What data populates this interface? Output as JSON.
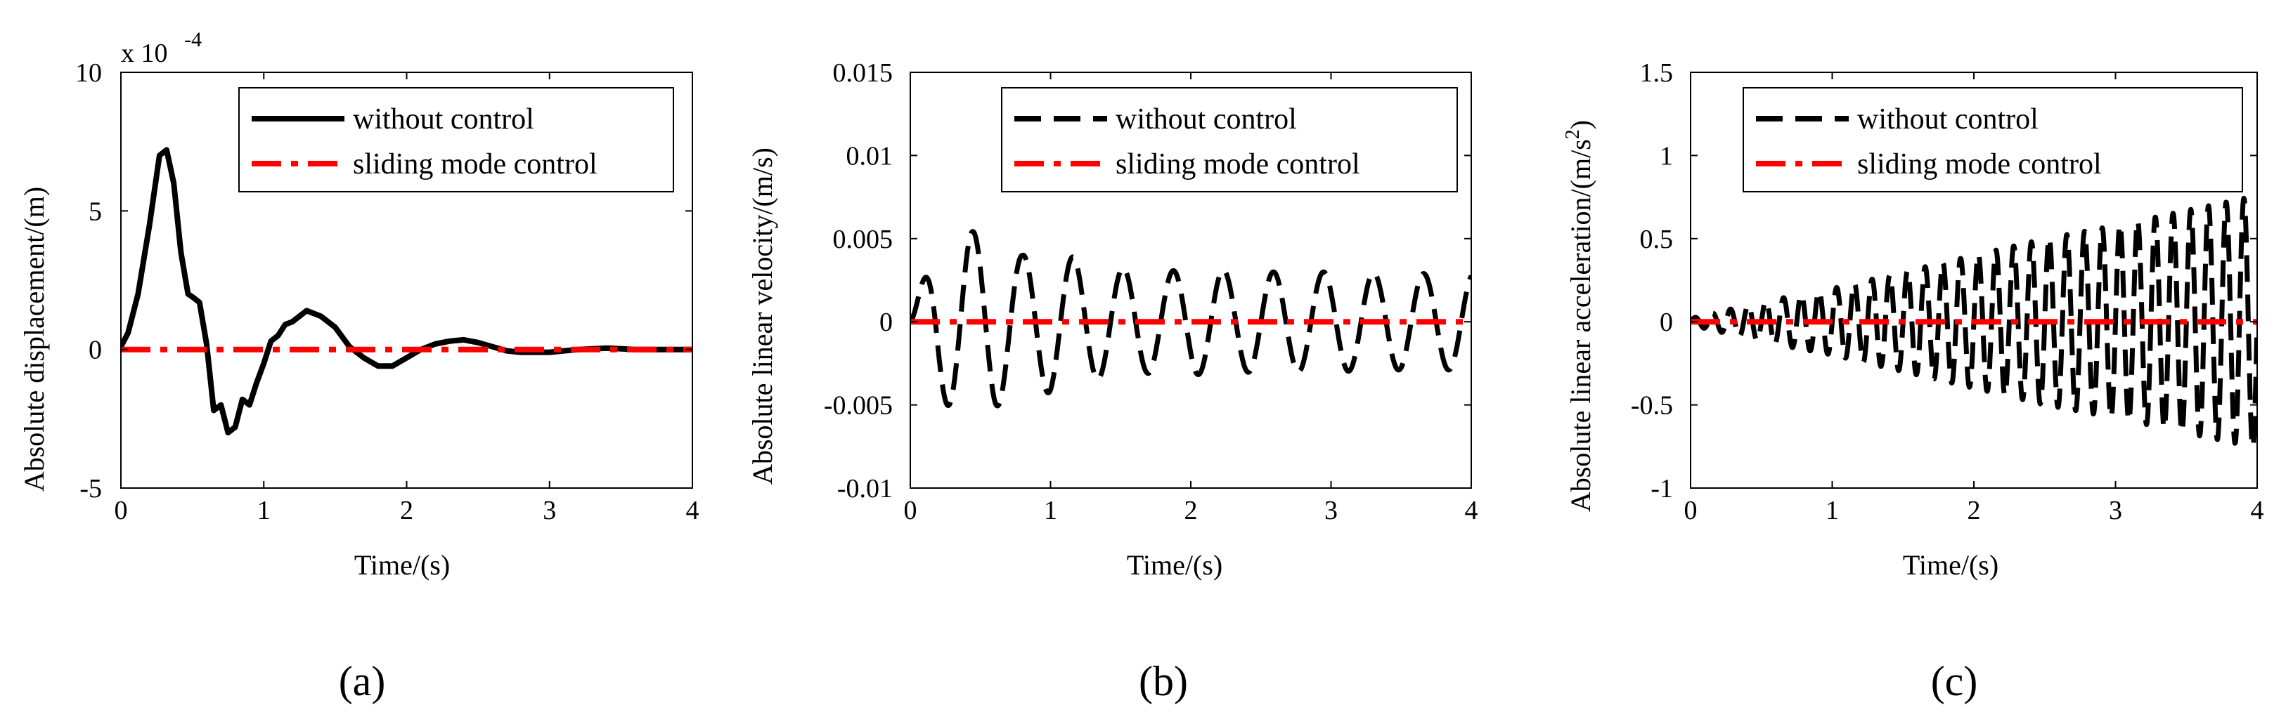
{
  "chart_data": [
    {
      "type": "line",
      "panel_label": "(a)",
      "xlabel": "Time/(s)",
      "ylabel": "Absolute displacement/(m)",
      "scale_annotation": "x 10",
      "scale_exponent": "-4",
      "xlim": [
        0,
        4
      ],
      "ylim": [
        -5,
        10
      ],
      "xticks": [
        0,
        1,
        2,
        3,
        4
      ],
      "yticks": [
        -5,
        0,
        5,
        10
      ],
      "ytick_labels": [
        "-5",
        "0",
        "5",
        "10"
      ],
      "grid": false,
      "legend": "top-right",
      "series": [
        {
          "name": "without control",
          "style": "solid",
          "color": "#000000",
          "x": [
            0,
            0.05,
            0.12,
            0.2,
            0.27,
            0.32,
            0.37,
            0.42,
            0.47,
            0.5,
            0.55,
            0.6,
            0.65,
            0.7,
            0.75,
            0.8,
            0.85,
            0.9,
            0.95,
            1.0,
            1.05,
            1.1,
            1.15,
            1.2,
            1.3,
            1.35,
            1.4,
            1.5,
            1.6,
            1.7,
            1.8,
            1.9,
            2.0,
            2.1,
            2.2,
            2.3,
            2.4,
            2.5,
            2.6,
            2.7,
            2.8,
            3.0,
            3.2,
            3.4,
            3.6,
            3.8,
            4.0
          ],
          "y": [
            0.1,
            0.6,
            2.0,
            4.5,
            7.0,
            7.2,
            6.0,
            3.5,
            2.0,
            1.9,
            1.7,
            0.2,
            -2.2,
            -2.0,
            -3.0,
            -2.8,
            -1.8,
            -2.0,
            -1.2,
            -0.5,
            0.3,
            0.5,
            0.9,
            1.0,
            1.4,
            1.3,
            1.2,
            0.8,
            0.1,
            -0.3,
            -0.6,
            -0.6,
            -0.3,
            0.0,
            0.2,
            0.3,
            0.35,
            0.25,
            0.1,
            -0.05,
            -0.1,
            -0.1,
            0.0,
            0.05,
            0.0,
            0.0,
            0.0
          ]
        },
        {
          "name": "sliding mode control",
          "style": "dashdot",
          "color": "#ff0000",
          "x": [
            0,
            4
          ],
          "y": [
            0,
            0
          ]
        }
      ]
    },
    {
      "type": "line",
      "panel_label": "(b)",
      "xlabel": "Time/(s)",
      "ylabel": "Absolute linear velocity/(m/s)",
      "xlim": [
        0,
        4
      ],
      "ylim": [
        -0.01,
        0.015
      ],
      "xticks": [
        0,
        1,
        2,
        3,
        4
      ],
      "yticks": [
        -0.01,
        -0.005,
        0,
        0.005,
        0.01,
        0.015
      ],
      "ytick_labels": [
        "-0.01",
        "-0.005",
        "0",
        "0.005",
        "0.01",
        "0.015"
      ],
      "grid": false,
      "legend": "top-right",
      "series": [
        {
          "name": "without control",
          "style": "dashed",
          "color": "#000000",
          "envelope": {
            "t": [
              0,
              0.2,
              0.4,
              0.6,
              0.8,
              1.0,
              1.2,
              1.4,
              1.6,
              1.8,
              2.0,
              2.5,
              3.0,
              3.5,
              4.0
            ],
            "amp": [
              0.0005,
              0.0048,
              0.0055,
              0.0052,
              0.004,
              0.0043,
              0.0038,
              0.0033,
              0.0032,
              0.003,
              0.0032,
              0.003,
              0.003,
              0.0029,
              0.0029
            ]
          },
          "oscillation_frequency_hz": 2.8
        },
        {
          "name": "sliding mode control",
          "style": "dashdot",
          "color": "#ff0000",
          "x": [
            0,
            4
          ],
          "y": [
            0,
            0
          ]
        }
      ]
    },
    {
      "type": "line",
      "panel_label": "(c)",
      "xlabel": "Time/(s)",
      "ylabel": "Absolute linear acceleration/(m/s",
      "ylabel_superscript": "2",
      "ylabel_suffix": ")",
      "xlim": [
        0,
        4
      ],
      "ylim": [
        -1,
        1.5
      ],
      "xticks": [
        0,
        1,
        2,
        3,
        4
      ],
      "yticks": [
        -1,
        -0.5,
        0,
        0.5,
        1,
        1.5
      ],
      "ytick_labels": [
        "-1",
        "-0.5",
        "0",
        "0.5",
        "1",
        "1.5"
      ],
      "grid": false,
      "legend": "top-right",
      "series": [
        {
          "name": "without control",
          "style": "dashed",
          "color": "#000000",
          "envelope": {
            "t": [
              0,
              0.5,
              1.0,
              1.5,
              2.0,
              2.5,
              3.0,
              3.5,
              4.0
            ],
            "amp": [
              0.02,
              0.12,
              0.2,
              0.3,
              0.4,
              0.5,
              0.58,
              0.67,
              0.76
            ]
          },
          "oscillation_frequency_hz": 8
        },
        {
          "name": "sliding mode control",
          "style": "dashdot",
          "color": "#ff0000",
          "x": [
            0,
            4
          ],
          "y": [
            0,
            0
          ]
        }
      ]
    }
  ]
}
